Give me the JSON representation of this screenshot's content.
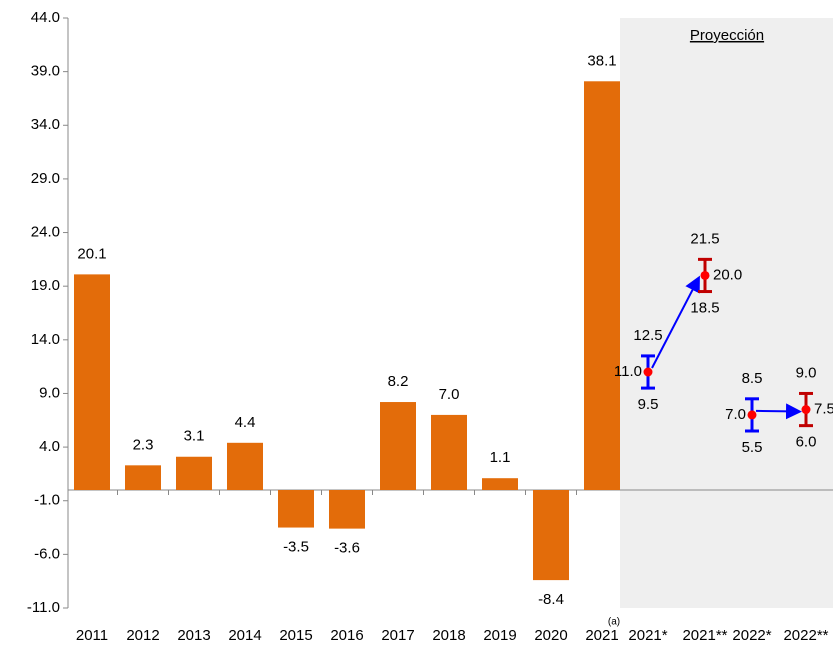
{
  "chart_data": [
    {
      "type": "bar",
      "categories": [
        "2011",
        "2012",
        "2013",
        "2014",
        "2015",
        "2016",
        "2017",
        "2018",
        "2019",
        "2020",
        "2021"
      ],
      "values": [
        20.1,
        2.3,
        3.1,
        4.4,
        -3.5,
        -3.6,
        8.2,
        7.0,
        1.1,
        -8.4,
        38.1
      ],
      "value_labels": [
        "20.1",
        "2.3",
        "3.1",
        "4.4",
        "-3.5",
        "-3.6",
        "8.2",
        "7.0",
        "1.1",
        "-8.4",
        "38.1"
      ],
      "color": "#e36c0a",
      "category_note": "(a)",
      "ylim": [
        -11,
        44
      ],
      "yticks": [
        {
          "value": -11,
          "label": "-11.0"
        },
        {
          "value": -6,
          "label": "-6.0"
        },
        {
          "value": -1,
          "label": "-1.0"
        },
        {
          "value": 4,
          "label": "4.0"
        },
        {
          "value": 9,
          "label": "9.0"
        },
        {
          "value": 14,
          "label": "14.0"
        },
        {
          "value": 19,
          "label": "19.0"
        },
        {
          "value": 24,
          "label": "24.0"
        },
        {
          "value": 29,
          "label": "29.0"
        },
        {
          "value": 34,
          "label": "34.0"
        },
        {
          "value": 39,
          "label": "39.0"
        },
        {
          "value": 44,
          "label": "44.0"
        }
      ]
    },
    {
      "type": "range",
      "annotation": "Proyección",
      "categories": [
        "2021*",
        "2021**",
        "2022*",
        "2022**"
      ],
      "values": [
        11.0,
        20.0,
        7.0,
        7.5
      ],
      "value_labels": [
        "11.0",
        "20.0",
        "7.0",
        "7.5"
      ],
      "low": [
        9.5,
        18.5,
        5.5,
        6.0
      ],
      "low_labels": [
        "9.5",
        "18.5",
        "5.5",
        "6.0"
      ],
      "high": [
        12.5,
        21.5,
        8.5,
        9.0
      ],
      "high_labels": [
        "12.5",
        "21.5",
        "8.5",
        "9.0"
      ],
      "colors": [
        "#0000ff",
        "#c00000",
        "#0000ff",
        "#c00000"
      ],
      "point_color": "#ff0000"
    }
  ]
}
